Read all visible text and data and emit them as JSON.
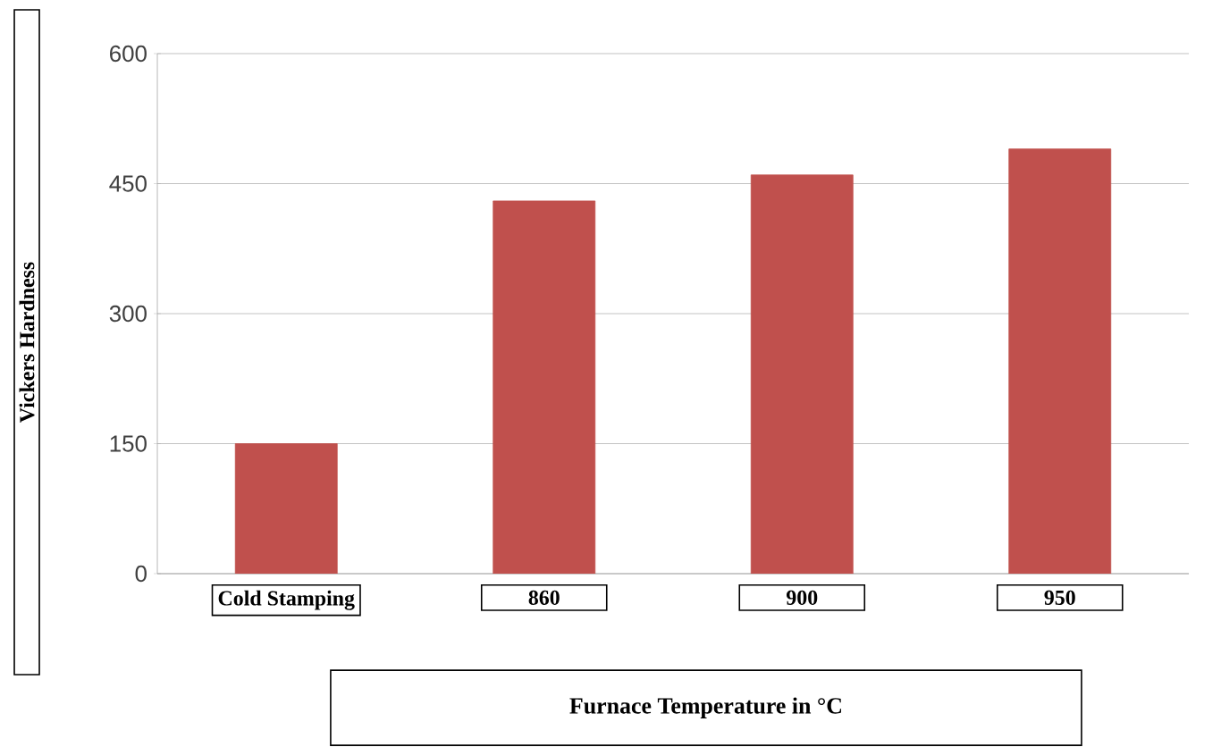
{
  "chart_data": {
    "type": "bar",
    "xlabel": "Furnace Temperature in °C",
    "ylabel": "Vickers Hardness",
    "categories": [
      "Cold Stamping",
      "860",
      "900",
      "950"
    ],
    "values": [
      150,
      430,
      460,
      490
    ],
    "color": "#c0504d",
    "ylim": [
      0,
      600
    ],
    "yticks": [
      0,
      150,
      300,
      450,
      600
    ],
    "grid": "y"
  }
}
